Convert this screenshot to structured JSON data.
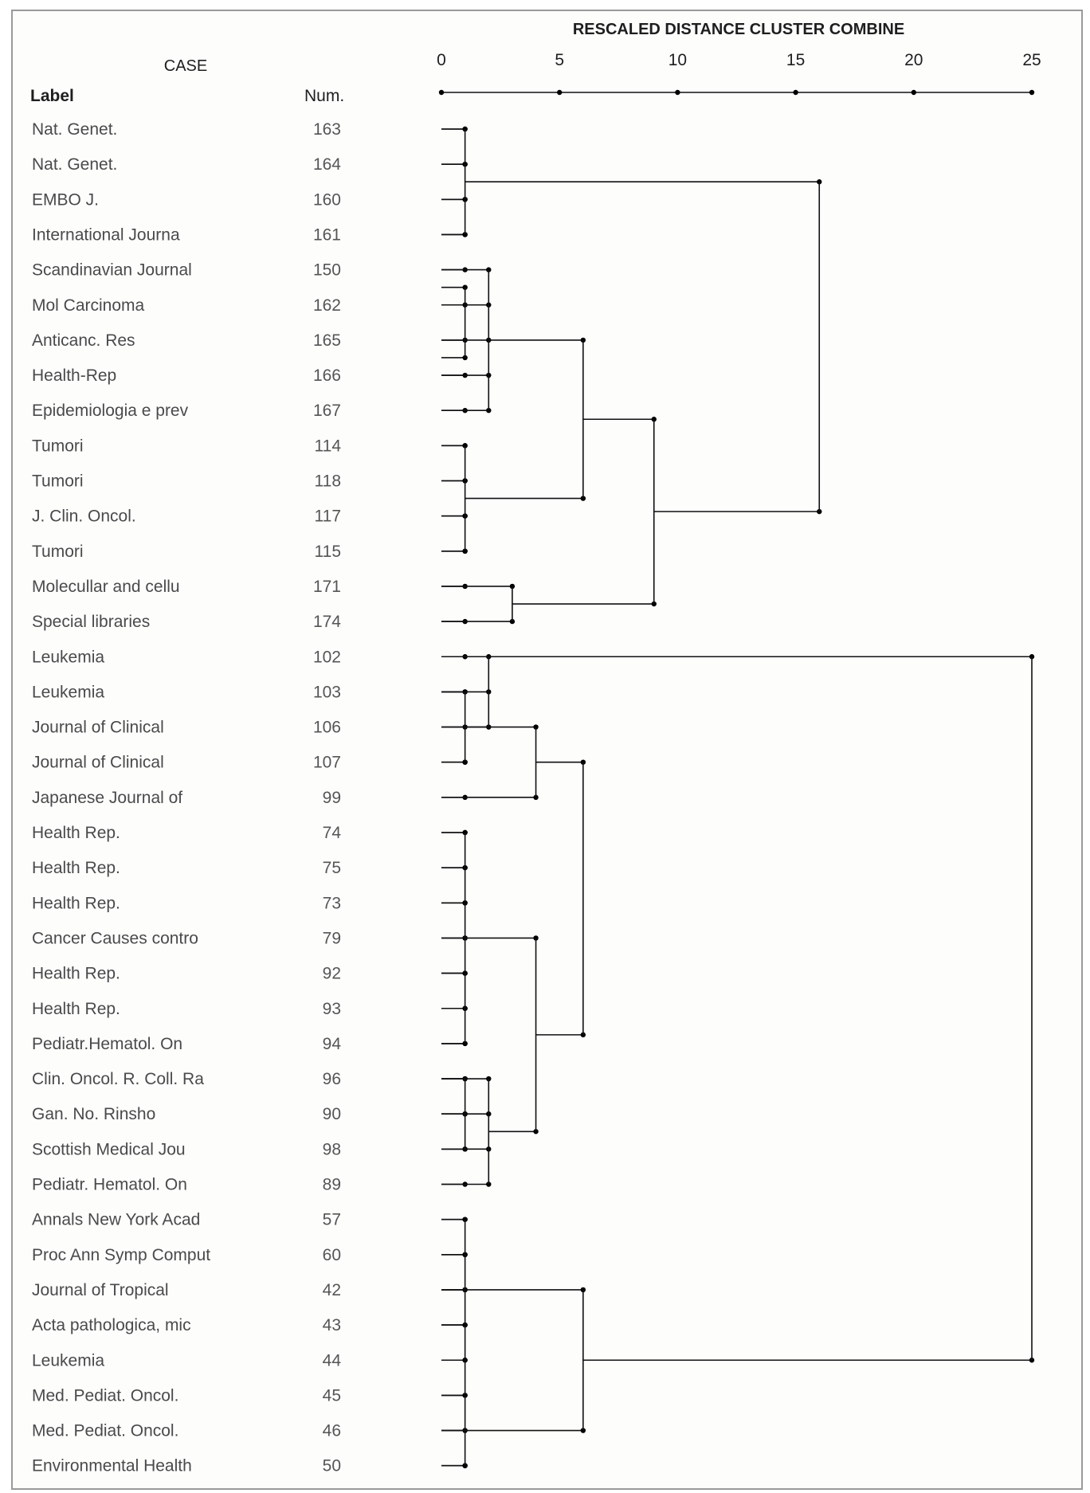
{
  "chart_data": {
    "type": "dendrogram",
    "title": "RESCALED DISTANCE CLUSTER COMBINE",
    "case_header": "CASE",
    "label_header": "Label",
    "num_header": "Num.",
    "xlim": [
      0,
      25
    ],
    "xticks": [
      0,
      5,
      10,
      15,
      20,
      25
    ],
    "cases": [
      {
        "label": "Nat. Genet.",
        "num": "163"
      },
      {
        "label": "Nat. Genet.",
        "num": "164"
      },
      {
        "label": "EMBO J.",
        "num": "160"
      },
      {
        "label": "International Journa",
        "num": "161"
      },
      {
        "label": "Scandinavian Journal",
        "num": "150"
      },
      {
        "label": "Mol Carcinoma",
        "num": "162"
      },
      {
        "label": "Anticanc. Res",
        "num": "165"
      },
      {
        "label": "Health-Rep",
        "num": "166"
      },
      {
        "label": "Epidemiologia e prev",
        "num": "167"
      },
      {
        "label": "Tumori",
        "num": "114"
      },
      {
        "label": "Tumori",
        "num": "118"
      },
      {
        "label": "J. Clin. Oncol.",
        "num": "117"
      },
      {
        "label": "Tumori",
        "num": "115"
      },
      {
        "label": "Molecullar and cellu",
        "num": "171"
      },
      {
        "label": "Special libraries",
        "num": "174"
      },
      {
        "label": "Leukemia",
        "num": "102"
      },
      {
        "label": "Leukemia",
        "num": "103"
      },
      {
        "label": "Journal of Clinical",
        "num": "106"
      },
      {
        "label": "Journal of Clinical",
        "num": "107"
      },
      {
        "label": "Japanese Journal of",
        "num": "99"
      },
      {
        "label": "Health Rep.",
        "num": "74"
      },
      {
        "label": "Health Rep.",
        "num": "75"
      },
      {
        "label": "Health Rep.",
        "num": "73"
      },
      {
        "label": "Cancer Causes contro",
        "num": "79"
      },
      {
        "label": "Health Rep.",
        "num": "92"
      },
      {
        "label": "Health Rep.",
        "num": "93"
      },
      {
        "label": "Pediatr.Hematol. On",
        "num": "94"
      },
      {
        "label": "Clin. Oncol. R. Coll. Ra",
        "num": "96"
      },
      {
        "label": "Gan. No. Rinsho",
        "num": "90"
      },
      {
        "label": "Scottish Medical Jou",
        "num": "98"
      },
      {
        "label": "Pediatr. Hematol. On",
        "num": "89"
      },
      {
        "label": "Annals New York Acad",
        "num": "57"
      },
      {
        "label": "Proc Ann Symp Comput",
        "num": "60"
      },
      {
        "label": "Journal of Tropical",
        "num": "42"
      },
      {
        "label": "Acta pathologica, mic",
        "num": "43"
      },
      {
        "label": "Leukemia",
        "num": "44"
      },
      {
        "label": "Med. Pediat. Oncol.",
        "num": "45"
      },
      {
        "label": "Med. Pediat. Oncol.",
        "num": "46"
      },
      {
        "label": "Environmental Health",
        "num": "50"
      }
    ],
    "merges": [
      {
        "distance": 1,
        "groups": [
          [
            0,
            1,
            2,
            3
          ]
        ]
      },
      {
        "distance": 1,
        "groups": [
          [
            4,
            5
          ],
          [
            6,
            7
          ]
        ]
      },
      {
        "distance": 2,
        "groups": [
          [
            4,
            5,
            6,
            7,
            8
          ]
        ]
      },
      {
        "distance": 1,
        "groups": [
          [
            9,
            10,
            11,
            12
          ]
        ]
      },
      {
        "distance": 6,
        "groups": [
          [
            4,
            5,
            6,
            7,
            8
          ],
          [
            9,
            10,
            11,
            12
          ]
        ]
      },
      {
        "distance": 3,
        "groups": [
          [
            13,
            14
          ]
        ]
      },
      {
        "distance": 9,
        "groups": [
          [
            4,
            5,
            6,
            7,
            8,
            9,
            10,
            11,
            12
          ],
          [
            13,
            14
          ]
        ]
      },
      {
        "distance": 16,
        "groups": [
          [
            0,
            1,
            2,
            3
          ],
          [
            4,
            5,
            6,
            7,
            8,
            9,
            10,
            11,
            12,
            13,
            14
          ]
        ]
      },
      {
        "distance": 1,
        "groups": [
          [
            15,
            16,
            17
          ],
          [
            18
          ]
        ]
      },
      {
        "distance": 2,
        "groups": [
          [
            15,
            16,
            17
          ]
        ]
      },
      {
        "distance": 4,
        "groups": [
          [
            15,
            16,
            17,
            18
          ],
          [
            19
          ]
        ]
      },
      {
        "distance": 1,
        "groups": [
          [
            20,
            21,
            22,
            23,
            24,
            25,
            26
          ]
        ]
      },
      {
        "distance": 1,
        "groups": [
          [
            27,
            28,
            29
          ]
        ]
      },
      {
        "distance": 2,
        "groups": [
          [
            27,
            28,
            29,
            30
          ]
        ]
      },
      {
        "distance": 4,
        "groups": [
          [
            20,
            21,
            22,
            23,
            24,
            25,
            26
          ],
          [
            27,
            28,
            29,
            30
          ]
        ]
      },
      {
        "distance": 6,
        "groups": [
          [
            15,
            16,
            17,
            18,
            19
          ],
          [
            20,
            21,
            22,
            23,
            24,
            25,
            26,
            27,
            28,
            29,
            30
          ]
        ]
      },
      {
        "distance": 1,
        "groups": [
          [
            31,
            32,
            33,
            34,
            35,
            36,
            37,
            38
          ]
        ]
      },
      {
        "distance": 6,
        "groups": [
          [
            31,
            32,
            33,
            34,
            35
          ],
          [
            36,
            37,
            38
          ]
        ]
      },
      {
        "distance": 25,
        "groups": [
          [
            0,
            1,
            2,
            3,
            4,
            5,
            6,
            7,
            8,
            9,
            10,
            11,
            12,
            13,
            14,
            15,
            16,
            17,
            18,
            19,
            20,
            21,
            22,
            23,
            24,
            25,
            26,
            27,
            28,
            29,
            30
          ],
          [
            31,
            32,
            33,
            34,
            35,
            36,
            37,
            38
          ]
        ]
      }
    ]
  }
}
